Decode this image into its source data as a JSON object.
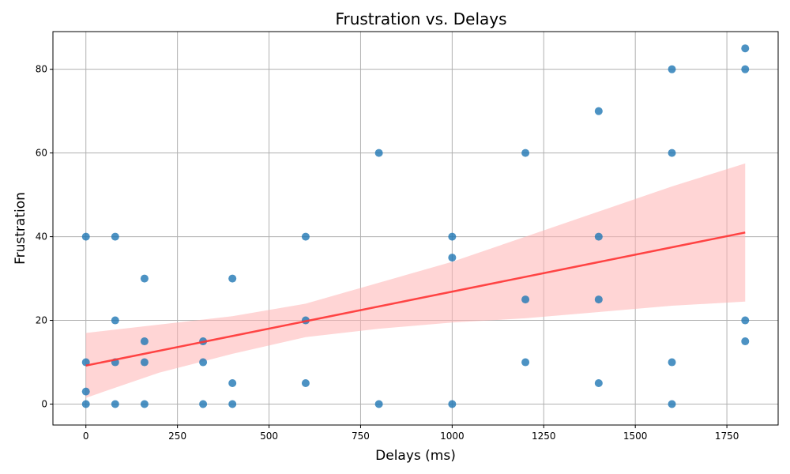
{
  "chart_data": {
    "type": "scatter",
    "title": "Frustration vs. Delays",
    "xlabel": "Delays (ms)",
    "ylabel": "Frustration",
    "xlim": [
      -90,
      1890
    ],
    "ylim": [
      -5,
      89
    ],
    "xticks": [
      0,
      250,
      500,
      750,
      1000,
      1250,
      1500,
      1750
    ],
    "yticks": [
      0,
      20,
      40,
      60,
      80
    ],
    "grid": true,
    "colors": {
      "points": "#1f77b4",
      "regression_line": "#ff3333",
      "confidence_band": "#ffb3b3"
    },
    "points": [
      {
        "x": 0,
        "y": 40
      },
      {
        "x": 0,
        "y": 10
      },
      {
        "x": 0,
        "y": 3
      },
      {
        "x": 0,
        "y": 0
      },
      {
        "x": 80,
        "y": 40
      },
      {
        "x": 80,
        "y": 20
      },
      {
        "x": 80,
        "y": 10
      },
      {
        "x": 80,
        "y": 0
      },
      {
        "x": 160,
        "y": 30
      },
      {
        "x": 160,
        "y": 15
      },
      {
        "x": 160,
        "y": 10
      },
      {
        "x": 160,
        "y": 0
      },
      {
        "x": 320,
        "y": 15
      },
      {
        "x": 320,
        "y": 10
      },
      {
        "x": 320,
        "y": 0
      },
      {
        "x": 400,
        "y": 30
      },
      {
        "x": 400,
        "y": 5
      },
      {
        "x": 400,
        "y": 0
      },
      {
        "x": 600,
        "y": 40
      },
      {
        "x": 600,
        "y": 20
      },
      {
        "x": 600,
        "y": 5
      },
      {
        "x": 800,
        "y": 60
      },
      {
        "x": 800,
        "y": 0
      },
      {
        "x": 1000,
        "y": 40
      },
      {
        "x": 1000,
        "y": 35
      },
      {
        "x": 1000,
        "y": 0
      },
      {
        "x": 1200,
        "y": 60
      },
      {
        "x": 1200,
        "y": 25
      },
      {
        "x": 1200,
        "y": 10
      },
      {
        "x": 1400,
        "y": 70
      },
      {
        "x": 1400,
        "y": 40
      },
      {
        "x": 1400,
        "y": 25
      },
      {
        "x": 1400,
        "y": 5
      },
      {
        "x": 1600,
        "y": 80
      },
      {
        "x": 1600,
        "y": 60
      },
      {
        "x": 1600,
        "y": 10
      },
      {
        "x": 1600,
        "y": 0
      },
      {
        "x": 1800,
        "y": 85
      },
      {
        "x": 1800,
        "y": 80
      },
      {
        "x": 1800,
        "y": 20
      },
      {
        "x": 1800,
        "y": 15
      }
    ],
    "regression": {
      "x_range": [
        0,
        1800
      ],
      "y_start": 9.2,
      "y_end": 41,
      "confidence_band": {
        "x": [
          0,
          200,
          400,
          600,
          800,
          1000,
          1200,
          1400,
          1600,
          1800
        ],
        "lower": [
          1.5,
          7.5,
          12,
          16,
          18,
          19.5,
          20.5,
          22,
          23.5,
          24.5
        ],
        "upper": [
          17,
          19,
          21,
          24,
          29,
          34,
          40,
          46,
          52,
          57.5
        ]
      }
    }
  }
}
